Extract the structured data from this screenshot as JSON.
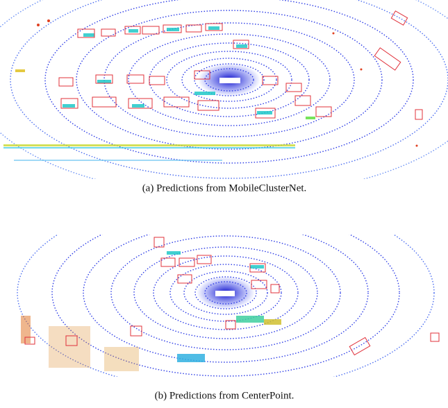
{
  "figures": [
    {
      "caption": "(a) Predictions from MobileClusterNet."
    },
    {
      "caption": "(b) Predictions from CenterPoint."
    }
  ]
}
